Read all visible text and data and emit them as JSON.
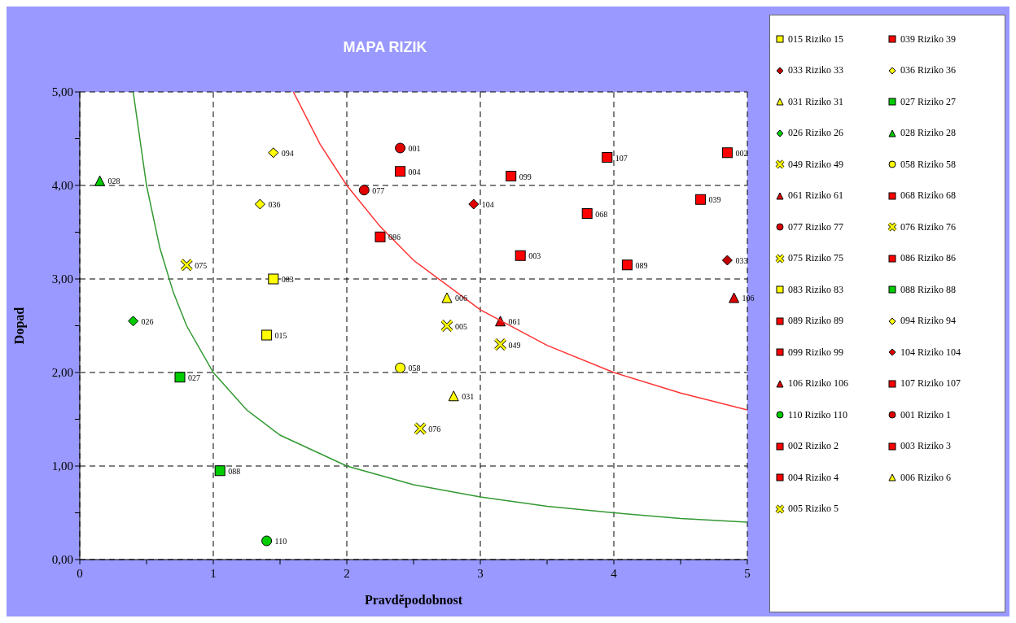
{
  "chart_data": {
    "type": "scatter",
    "title": "MAPA RIZIK",
    "xlabel": "Pravděpodobnost",
    "ylabel": "Dopad",
    "xlim": [
      0,
      5
    ],
    "xticks": [
      0,
      {
        "value": 0.5,
        "label": null
      },
      1,
      {
        "value": 1.5,
        "label": null
      },
      2,
      {
        "value": 2.5,
        "label": null
      },
      3,
      {
        "value": 3.5,
        "label": null
      },
      4,
      {
        "value": 4.5,
        "label": null
      },
      5
    ],
    "ylim": [
      0,
      5
    ],
    "yticks": [
      {
        "value": 0,
        "label": "0,00"
      },
      {
        "value": 0.5,
        "label": null
      },
      {
        "value": 1,
        "label": "1,00"
      },
      {
        "value": 1.5,
        "label": null
      },
      {
        "value": 2,
        "label": "2,00"
      },
      {
        "value": 2.5,
        "label": null
      },
      {
        "value": 3,
        "label": "3,00"
      },
      {
        "value": 3.5,
        "label": null
      },
      {
        "value": 4,
        "label": "4,00"
      },
      {
        "value": 4.5,
        "label": null
      },
      {
        "value": 5,
        "label": "5,00"
      }
    ],
    "grid": true,
    "legend": "right",
    "series": [
      {
        "name": "015 Riziko 15",
        "marker": "square",
        "color": "#ffff00",
        "x": [
          1.4
        ],
        "values": [
          2.4
        ]
      },
      {
        "name": "039 Riziko 39",
        "marker": "square",
        "color": "#ff0000",
        "x": [
          4.65
        ],
        "values": [
          3.85
        ]
      },
      {
        "name": "033 Riziko 33",
        "marker": "diamond",
        "color": "#c00000",
        "x": [
          4.85
        ],
        "values": [
          3.2
        ]
      },
      {
        "name": "036 Riziko 36",
        "marker": "diamond",
        "color": "#ffff00",
        "x": [
          1.35
        ],
        "values": [
          3.8
        ]
      },
      {
        "name": "031 Riziko 31",
        "marker": "triangle",
        "color": "#ffff00",
        "x": [
          2.8
        ],
        "values": [
          1.75
        ]
      },
      {
        "name": "027 Riziko 27",
        "marker": "square",
        "color": "#00cc00",
        "x": [
          0.75
        ],
        "values": [
          1.95
        ]
      },
      {
        "name": "026 Riziko 26",
        "marker": "diamond",
        "color": "#00cc00",
        "x": [
          0.4
        ],
        "values": [
          2.55
        ]
      },
      {
        "name": "028 Riziko 28",
        "marker": "triangle",
        "color": "#00cc00",
        "x": [
          0.15
        ],
        "values": [
          4.05
        ]
      },
      {
        "name": "049 Riziko 49",
        "marker": "cross",
        "color": "#ffff00",
        "x": [
          3.15
        ],
        "values": [
          2.3
        ]
      },
      {
        "name": "058 Riziko 58",
        "marker": "circle",
        "color": "#ffff00",
        "x": [
          2.4
        ],
        "values": [
          2.05
        ]
      },
      {
        "name": "061 Riziko 61",
        "marker": "triangle",
        "color": "#e00000",
        "x": [
          3.15
        ],
        "values": [
          2.55
        ]
      },
      {
        "name": "068 Riziko 68",
        "marker": "square",
        "color": "#ff0000",
        "x": [
          3.8
        ],
        "values": [
          3.7
        ]
      },
      {
        "name": "077 Riziko 77",
        "marker": "circle",
        "color": "#e00000",
        "x": [
          2.13
        ],
        "values": [
          3.95
        ]
      },
      {
        "name": "076 Riziko 76",
        "marker": "cross",
        "color": "#ffff00",
        "x": [
          2.55
        ],
        "values": [
          1.4
        ]
      },
      {
        "name": "075 Riziko 75",
        "marker": "cross",
        "color": "#ffff00",
        "x": [
          0.8
        ],
        "values": [
          3.15
        ]
      },
      {
        "name": "086 Riziko 86",
        "marker": "square",
        "color": "#ff0000",
        "x": [
          2.25
        ],
        "values": [
          3.45
        ]
      },
      {
        "name": "083 Riziko 83",
        "marker": "square",
        "color": "#ffff00",
        "x": [
          1.45
        ],
        "values": [
          3.0
        ]
      },
      {
        "name": "088 Riziko 88",
        "marker": "square",
        "color": "#00cc00",
        "x": [
          1.05
        ],
        "values": [
          0.95
        ]
      },
      {
        "name": "089 Riziko 89",
        "marker": "square",
        "color": "#ff0000",
        "x": [
          4.1
        ],
        "values": [
          3.15
        ]
      },
      {
        "name": "094 Riziko 94",
        "marker": "diamond",
        "color": "#ffff00",
        "x": [
          1.45
        ],
        "values": [
          4.35
        ]
      },
      {
        "name": "099 Riziko 99",
        "marker": "square",
        "color": "#ff0000",
        "x": [
          3.23
        ],
        "values": [
          4.1
        ]
      },
      {
        "name": "104 Riziko 104",
        "marker": "diamond",
        "color": "#e00000",
        "x": [
          2.95
        ],
        "values": [
          3.8
        ]
      },
      {
        "name": "106 Riziko 106",
        "marker": "triangle",
        "color": "#e00000",
        "x": [
          4.9
        ],
        "values": [
          2.8
        ]
      },
      {
        "name": "107 Riziko 107",
        "marker": "square",
        "color": "#ff0000",
        "x": [
          3.95
        ],
        "values": [
          4.3
        ]
      },
      {
        "name": "110 Riziko 110",
        "marker": "circle",
        "color": "#00cc00",
        "x": [
          1.4
        ],
        "values": [
          0.2
        ]
      },
      {
        "name": "001 Riziko 1",
        "marker": "circle",
        "color": "#e00000",
        "x": [
          2.4
        ],
        "values": [
          4.4
        ]
      },
      {
        "name": "002 Riziko 2",
        "marker": "square",
        "color": "#ff0000",
        "x": [
          4.85
        ],
        "values": [
          4.35
        ]
      },
      {
        "name": "003 Riziko 3",
        "marker": "square",
        "color": "#ff0000",
        "x": [
          3.3
        ],
        "values": [
          3.25
        ]
      },
      {
        "name": "004 Riziko 4",
        "marker": "square",
        "color": "#ff0000",
        "x": [
          2.4
        ],
        "values": [
          4.15
        ]
      },
      {
        "name": "006 Riziko 6",
        "marker": "triangle",
        "color": "#ffff00",
        "x": [
          2.75
        ],
        "values": [
          2.8
        ]
      },
      {
        "name": "005 Riziko 5",
        "marker": "cross",
        "color": "#ffff00",
        "x": [
          2.75
        ],
        "values": [
          2.5
        ]
      },
      {
        "type": "line",
        "color": "#339933",
        "x": [
          0.4,
          0.5,
          0.6,
          0.7,
          0.8,
          1,
          1.25,
          1.5,
          2,
          2.5,
          3,
          3.5,
          4,
          4.5,
          5
        ],
        "values": [
          5,
          4,
          3.33,
          2.86,
          2.5,
          2,
          1.6,
          1.33,
          1,
          0.8,
          0.67,
          0.57,
          0.5,
          0.44,
          0.4
        ]
      },
      {
        "type": "line",
        "color": "#ff3333",
        "x": [
          1.6,
          1.8,
          2,
          2.25,
          2.5,
          3,
          3.5,
          4,
          4.5,
          5
        ],
        "values": [
          5,
          4.44,
          4,
          3.56,
          3.2,
          2.67,
          2.29,
          2,
          1.78,
          1.6
        ]
      }
    ],
    "annotations": [
      {
        "text": "015",
        "x": 1.4,
        "y": 2.4
      },
      {
        "text": "039",
        "x": 4.65,
        "y": 3.85
      },
      {
        "text": "033",
        "x": 4.85,
        "y": 3.2
      },
      {
        "text": "036",
        "x": 1.35,
        "y": 3.8
      },
      {
        "text": "031",
        "x": 2.8,
        "y": 1.75
      },
      {
        "text": "027",
        "x": 0.75,
        "y": 1.95
      },
      {
        "text": "026",
        "x": 0.4,
        "y": 2.55
      },
      {
        "text": "028",
        "x": 0.15,
        "y": 4.05
      },
      {
        "text": "049",
        "x": 3.15,
        "y": 2.3
      },
      {
        "text": "058",
        "x": 2.4,
        "y": 2.05
      },
      {
        "text": "061",
        "x": 3.15,
        "y": 2.55
      },
      {
        "text": "068",
        "x": 3.8,
        "y": 3.7
      },
      {
        "text": "077",
        "x": 2.13,
        "y": 3.95
      },
      {
        "text": "076",
        "x": 2.55,
        "y": 1.4
      },
      {
        "text": "075",
        "x": 0.8,
        "y": 3.15
      },
      {
        "text": "086",
        "x": 2.25,
        "y": 3.45
      },
      {
        "text": "083",
        "x": 1.45,
        "y": 3.0
      },
      {
        "text": "088",
        "x": 1.05,
        "y": 0.95
      },
      {
        "text": "089",
        "x": 4.1,
        "y": 3.15
      },
      {
        "text": "094",
        "x": 1.45,
        "y": 4.35
      },
      {
        "text": "099",
        "x": 3.23,
        "y": 4.1
      },
      {
        "text": "104",
        "x": 2.95,
        "y": 3.8
      },
      {
        "text": "106",
        "x": 4.9,
        "y": 2.8
      },
      {
        "text": "107",
        "x": 3.95,
        "y": 4.3
      },
      {
        "text": "110",
        "x": 1.4,
        "y": 0.2
      },
      {
        "text": "001",
        "x": 2.4,
        "y": 4.4
      },
      {
        "text": "002",
        "x": 4.85,
        "y": 4.35
      },
      {
        "text": "003",
        "x": 3.3,
        "y": 3.25
      },
      {
        "text": "004",
        "x": 2.4,
        "y": 4.15
      },
      {
        "text": "006",
        "x": 2.75,
        "y": 2.8
      },
      {
        "text": "005",
        "x": 2.75,
        "y": 2.5
      }
    ]
  }
}
